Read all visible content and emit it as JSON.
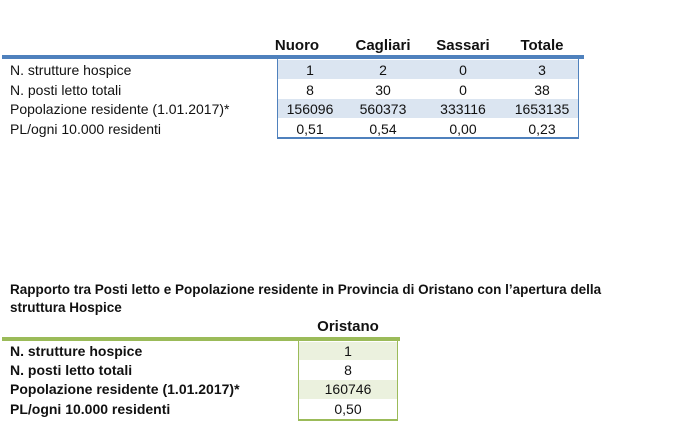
{
  "table1": {
    "columns": [
      "Nuoro",
      "Cagliari",
      "Sassari",
      "Totale"
    ],
    "rows": [
      {
        "label": "N. strutture hospice",
        "values": [
          "1",
          "2",
          "0",
          "3"
        ]
      },
      {
        "label": "N. posti letto totali",
        "values": [
          "8",
          "30",
          "0",
          "38"
        ]
      },
      {
        "label": "Popolazione residente (1.01.2017)*",
        "values": [
          "156096",
          "560373",
          "333116",
          "1653135"
        ]
      },
      {
        "label": "PL/ogni 10.000 residenti",
        "values": [
          "0,51",
          "0,54",
          "0,00",
          "0,23"
        ]
      }
    ]
  },
  "table2": {
    "title_line1": "Rapporto tra Posti letto e Popolazione residente in Provincia di Oristano con l’apertura della",
    "title_line2": "struttura Hospice",
    "column": "Oristano",
    "rows": [
      {
        "label": "N. strutture hospice",
        "value": "1"
      },
      {
        "label": "N. posti letto totali",
        "value": "8"
      },
      {
        "label": "Popolazione residente (1.01.2017)*",
        "value": "160746"
      },
      {
        "label": "PL/ogni 10.000 residenti",
        "value": "0,50"
      }
    ]
  },
  "colors": {
    "blue_accent": "#4f81bd",
    "blue_fill": "#dbe5f1",
    "green_accent": "#9bbb59",
    "green_fill": "#ebf1de"
  }
}
